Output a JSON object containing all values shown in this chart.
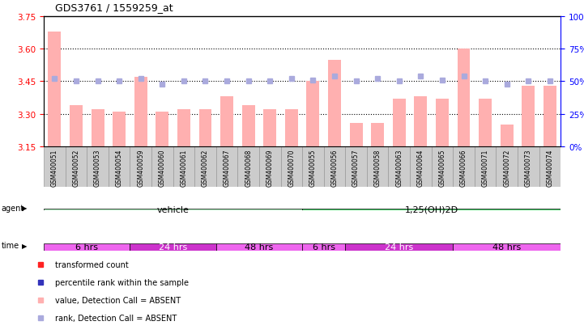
{
  "title": "GDS3761 / 1559259_at",
  "samples": [
    "GSM400051",
    "GSM400052",
    "GSM400053",
    "GSM400054",
    "GSM400059",
    "GSM400060",
    "GSM400061",
    "GSM400062",
    "GSM400067",
    "GSM400068",
    "GSM400069",
    "GSM400070",
    "GSM400055",
    "GSM400056",
    "GSM400057",
    "GSM400058",
    "GSM400063",
    "GSM400064",
    "GSM400065",
    "GSM400066",
    "GSM400071",
    "GSM400072",
    "GSM400073",
    "GSM400074"
  ],
  "bar_values": [
    3.68,
    3.34,
    3.32,
    3.31,
    3.47,
    3.31,
    3.32,
    3.32,
    3.38,
    3.34,
    3.32,
    3.32,
    3.45,
    3.55,
    3.26,
    3.26,
    3.37,
    3.38,
    3.37,
    3.6,
    3.37,
    3.25,
    3.43,
    3.43
  ],
  "rank_values": [
    52,
    50,
    50,
    50,
    52,
    48,
    50,
    50,
    50,
    50,
    50,
    52,
    51,
    54,
    50,
    52,
    50,
    54,
    51,
    54,
    50,
    48,
    50,
    50
  ],
  "bar_color_absent": "#FFB0B0",
  "bar_color_present": "#FF2222",
  "rank_color_absent": "#AAAADD",
  "rank_color_present": "#3333BB",
  "absent_flags": [
    true,
    true,
    true,
    true,
    true,
    true,
    true,
    true,
    true,
    true,
    true,
    true,
    true,
    true,
    true,
    true,
    true,
    true,
    true,
    true,
    true,
    true,
    true,
    true
  ],
  "ylim_left": [
    3.15,
    3.75
  ],
  "ylim_right": [
    0,
    100
  ],
  "yticks_left": [
    3.15,
    3.3,
    3.45,
    3.6,
    3.75
  ],
  "yticks_right": [
    0,
    25,
    50,
    75,
    100
  ],
  "hline_values": [
    3.3,
    3.45,
    3.6
  ],
  "agent_groups": [
    {
      "label": "vehicle",
      "start": 0,
      "end": 12,
      "color": "#AAEEBB"
    },
    {
      "label": "1,25(OH)2D",
      "start": 12,
      "end": 24,
      "color": "#44CC66"
    }
  ],
  "time_groups": [
    {
      "label": "6 hrs",
      "start": 0,
      "end": 4,
      "color": "#EE66EE"
    },
    {
      "label": "24 hrs",
      "start": 4,
      "end": 8,
      "color": "#CC33CC"
    },
    {
      "label": "48 hrs",
      "start": 8,
      "end": 12,
      "color": "#EE66EE"
    },
    {
      "label": "6 hrs",
      "start": 12,
      "end": 14,
      "color": "#EE66EE"
    },
    {
      "label": "24 hrs",
      "start": 14,
      "end": 19,
      "color": "#CC33CC"
    },
    {
      "label": "48 hrs",
      "start": 19,
      "end": 24,
      "color": "#EE66EE"
    }
  ],
  "legend_items": [
    {
      "color": "#FF2222",
      "label": "transformed count"
    },
    {
      "color": "#3333BB",
      "label": "percentile rank within the sample"
    },
    {
      "color": "#FFB0B0",
      "label": "value, Detection Call = ABSENT"
    },
    {
      "color": "#AAAADD",
      "label": "rank, Detection Call = ABSENT"
    }
  ],
  "label_bg_color": "#CCCCCC",
  "label_border_color": "#999999"
}
